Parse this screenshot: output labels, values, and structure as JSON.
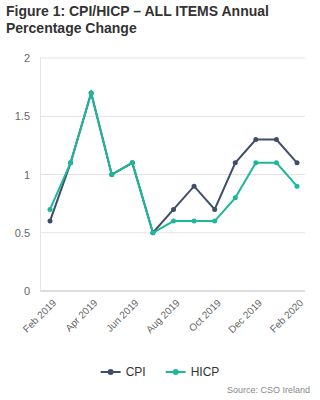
{
  "chart_data": {
    "type": "line",
    "title": "Figure 1: CPI/HICP – ALL ITEMS Annual Percentage Change",
    "categories": [
      "Feb 2019",
      null,
      "Apr 2019",
      null,
      "Jun 2019",
      null,
      "Aug 2019",
      null,
      "Oct 2019",
      null,
      "Dec 2019",
      null,
      "Feb 2020"
    ],
    "series": [
      {
        "name": "CPI",
        "color": "#3f4f6b",
        "marker": "circle",
        "values": [
          0.6,
          1.1,
          1.7,
          1.0,
          1.1,
          0.5,
          0.7,
          0.9,
          0.7,
          1.1,
          1.3,
          1.3,
          1.1
        ]
      },
      {
        "name": "HICP",
        "color": "#1db89b",
        "marker": "circle",
        "values": [
          0.7,
          1.1,
          1.7,
          1.0,
          1.1,
          0.5,
          0.6,
          0.6,
          0.6,
          0.8,
          1.1,
          1.1,
          0.9
        ]
      }
    ],
    "ylim": [
      0,
      2
    ],
    "yticks": [
      0,
      0.5,
      1,
      1.5,
      2
    ],
    "grid": true,
    "legend": "bottom",
    "annotations": [
      "Source: CSO Ireland"
    ]
  }
}
